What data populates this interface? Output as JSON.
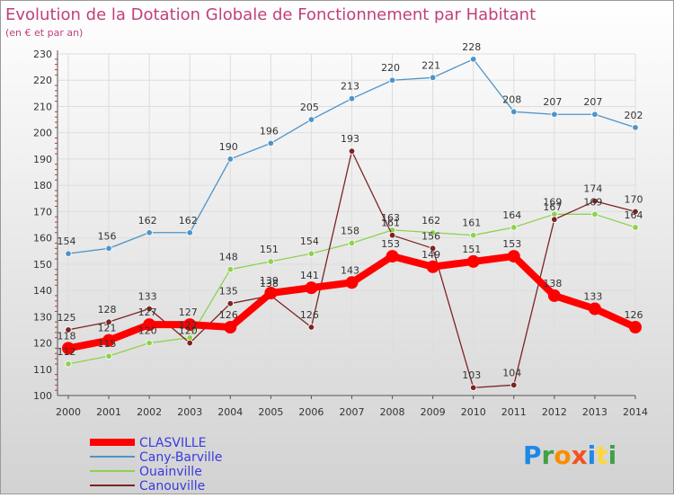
{
  "chart_data": {
    "type": "line",
    "title": "Evolution de la Dotation Globale de Fonctionnement par Habitant",
    "subtitle": "(en € et par an)",
    "xlabel": "",
    "ylabel": "",
    "x": [
      "2000",
      "2001",
      "2002",
      "2003",
      "2004",
      "2005",
      "2006",
      "2007",
      "2008",
      "2009",
      "2010",
      "2011",
      "2012",
      "2013",
      "2014"
    ],
    "ylim": [
      100,
      230
    ],
    "yticks": [
      "100",
      "110",
      "120",
      "130",
      "140",
      "150",
      "160",
      "170",
      "180",
      "190",
      "200",
      "210",
      "220",
      "230"
    ],
    "grid": true,
    "legend_position": "bottom-left",
    "series": [
      {
        "name": "CLASVILLE",
        "color": "#ff0000",
        "labels": [
          "118",
          "121",
          "127",
          "127",
          "126",
          "139",
          "141",
          "143",
          "153",
          "149",
          "151",
          "153",
          "138",
          "133",
          "126"
        ],
        "values": [
          118,
          121,
          127,
          127,
          126,
          139,
          141,
          143,
          153,
          149,
          151,
          153,
          138,
          133,
          126
        ]
      },
      {
        "name": "Cany-Barville",
        "color": "#4f94c8",
        "labels": [
          "154",
          "156",
          "162",
          "162",
          "190",
          "196",
          "205",
          "213",
          "220",
          "221",
          "228",
          "208",
          "207",
          "207",
          "202"
        ],
        "values": [
          154,
          156,
          162,
          162,
          190,
          196,
          205,
          213,
          220,
          221,
          228,
          208,
          207,
          207,
          202
        ]
      },
      {
        "name": "Ouainville",
        "color": "#8fd14f",
        "labels": [
          "112",
          "115",
          "120",
          "122",
          "148",
          "151",
          "154",
          "158",
          "163",
          "162",
          "161",
          "164",
          "169",
          "169",
          "164"
        ],
        "values": [
          112,
          115,
          120,
          122,
          148,
          151,
          154,
          158,
          163,
          162,
          161,
          164,
          169,
          169,
          164
        ]
      },
      {
        "name": "Canouville",
        "color": "#7b2424",
        "labels": [
          "125",
          "128",
          "133",
          "120",
          "135",
          "138",
          "126",
          "193",
          "161",
          "156",
          "103",
          "104",
          "167",
          "174",
          "170"
        ],
        "values": [
          125,
          128,
          133,
          120,
          135,
          138,
          126,
          193,
          161,
          156,
          103,
          104,
          167,
          174,
          170
        ]
      }
    ]
  },
  "brand": {
    "text": "Proxiti"
  },
  "colors": {
    "title": "#c0407a",
    "legend_text": "#3a3ae0",
    "axis": "#555555",
    "grid": "#dddddd"
  }
}
